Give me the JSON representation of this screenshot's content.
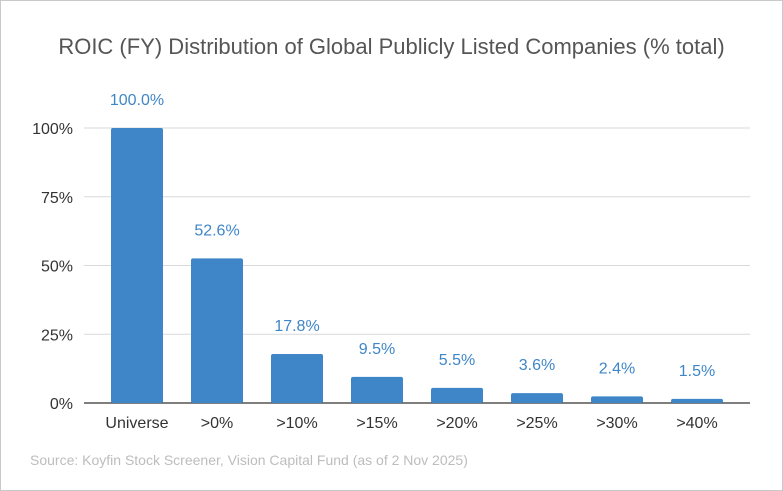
{
  "chart_data": {
    "type": "bar",
    "title": "ROIC (FY) Distribution of Global Publicly Listed Companies (% total)",
    "source": "Source: Koyfin Stock Screener, Vision Capital Fund (as of 2 Nov 2025)",
    "categories": [
      "Universe",
      ">0%",
      ">10%",
      ">15%",
      ">20%",
      ">25%",
      ">30%",
      ">40%"
    ],
    "values": [
      100.0,
      52.6,
      17.8,
      9.5,
      5.5,
      3.6,
      2.4,
      1.5
    ],
    "data_labels": [
      "100.0%",
      "52.6%",
      "17.8%",
      "9.5%",
      "5.5%",
      "3.6%",
      "2.4%",
      "1.5%"
    ],
    "yticks": [
      0,
      25,
      50,
      75,
      100
    ],
    "ytick_labels": [
      "0%",
      "25%",
      "50%",
      "75%",
      "100%"
    ],
    "ylim": [
      0,
      100
    ],
    "grid": true,
    "bar_color": "#3f86c8",
    "label_color": "#3f86c8",
    "grid_color": "#d9d9d9"
  }
}
